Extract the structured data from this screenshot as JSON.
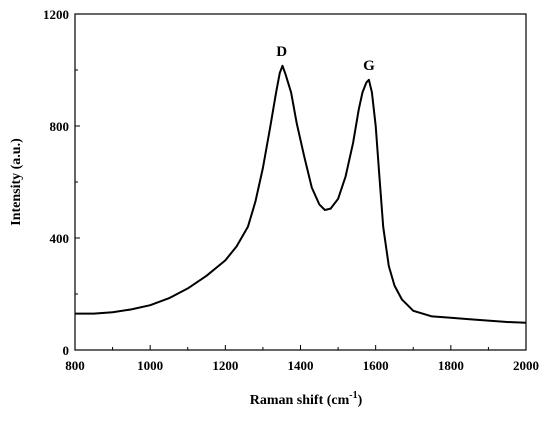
{
  "chart_data": {
    "type": "line",
    "title": "",
    "xlabel": "Raman shift (cm",
    "xlabel_sup": "-1",
    "xlabel_close": ")",
    "ylabel": "Intensity (a.u.)",
    "xlim": [
      800,
      2000
    ],
    "ylim": [
      0,
      1200
    ],
    "xticks": [
      800,
      1000,
      1200,
      1400,
      1600,
      1800,
      2000
    ],
    "yticks": [
      0,
      400,
      800,
      1200
    ],
    "grid": false,
    "legend": "none",
    "line_color": "#000000",
    "annotations": [
      {
        "text": "D",
        "x": 1350,
        "y": 1050
      },
      {
        "text": "G",
        "x": 1582,
        "y": 1000
      }
    ],
    "series": [
      {
        "x": [
          800,
          850,
          900,
          950,
          1000,
          1050,
          1100,
          1150,
          1200,
          1230,
          1260,
          1280,
          1300,
          1320,
          1335,
          1345,
          1352,
          1360,
          1375,
          1390,
          1410,
          1430,
          1450,
          1465,
          1480,
          1500,
          1520,
          1540,
          1555,
          1565,
          1575,
          1582,
          1590,
          1600,
          1610,
          1620,
          1635,
          1650,
          1670,
          1700,
          1750,
          1800,
          1850,
          1900,
          1950,
          2000
        ],
        "y": [
          130,
          130,
          135,
          145,
          160,
          185,
          220,
          265,
          320,
          370,
          440,
          530,
          650,
          800,
          920,
          990,
          1015,
          985,
          920,
          810,
          690,
          580,
          520,
          500,
          505,
          540,
          620,
          740,
          860,
          920,
          955,
          965,
          920,
          800,
          620,
          440,
          300,
          230,
          180,
          140,
          120,
          115,
          110,
          105,
          100,
          97
        ]
      }
    ]
  }
}
